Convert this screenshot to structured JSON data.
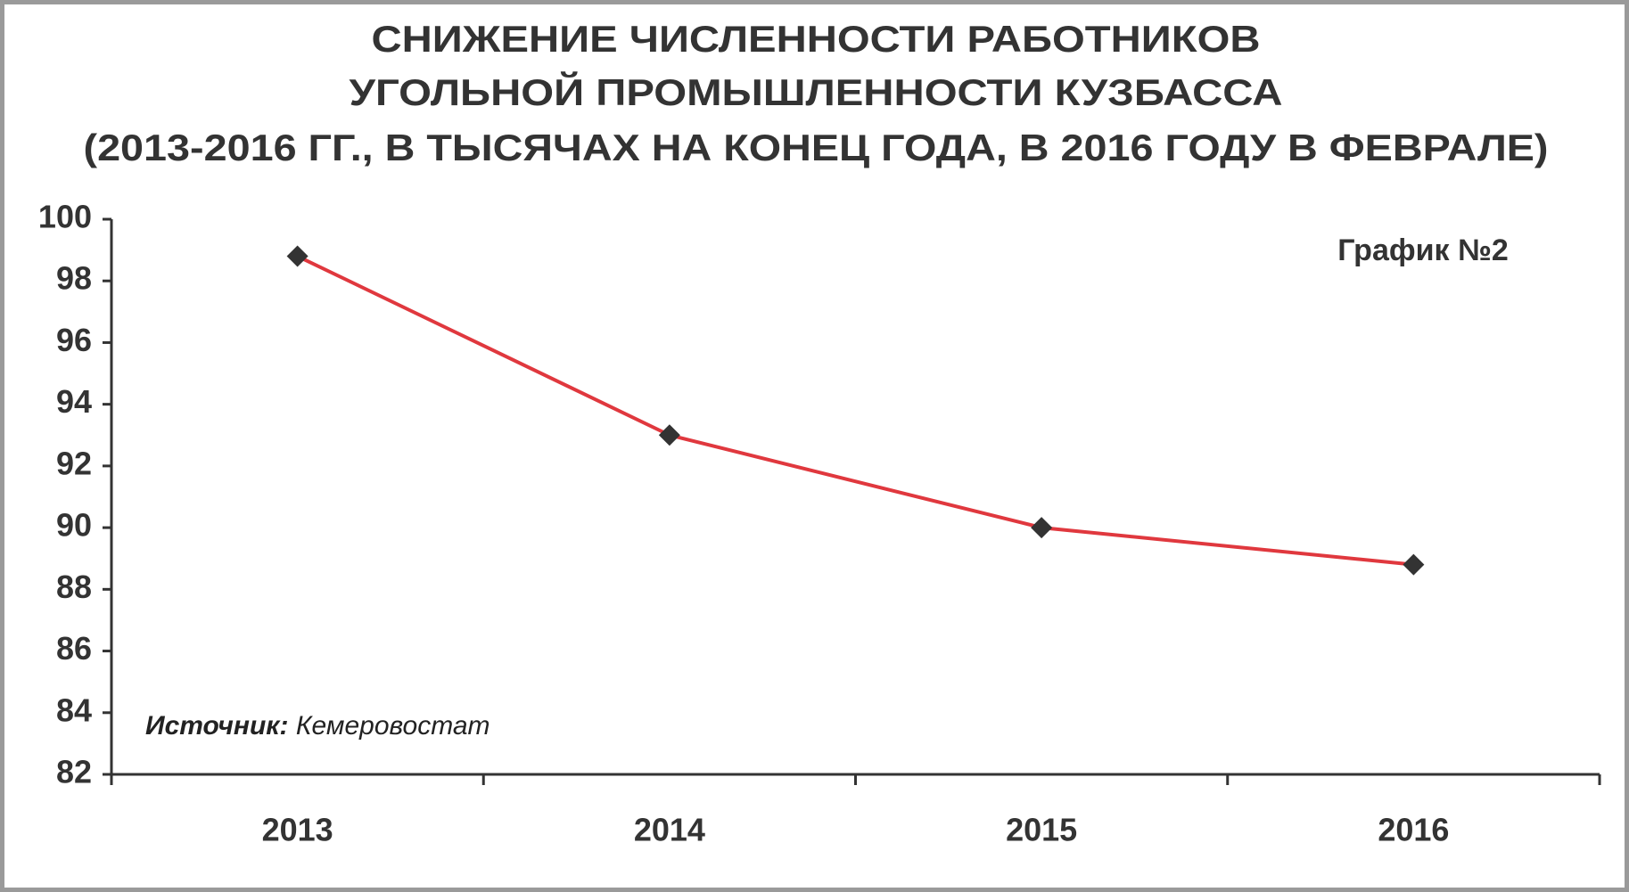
{
  "chart_data": {
    "type": "line",
    "title": [
      "СНИЖЕНИЕ ЧИСЛЕННОСТИ РАБОТНИКОВ",
      "УГОЛЬНОЙ ПРОМЫШЛЕННОСТИ КУЗБАССА",
      "(2013-2016 ГГ., В ТЫСЯЧАХ НА КОНЕЦ ГОДА, В 2016 ГОДУ В ФЕВРАЛЕ)"
    ],
    "annotation": "График №2",
    "source_label": "Источник:",
    "source": "Кемеровостат",
    "categories": [
      "2013",
      "2014",
      "2015",
      "2016"
    ],
    "values": [
      98.8,
      93.0,
      90.0,
      88.8
    ],
    "color": "#e0383e",
    "marker_color": "#333333",
    "ylim": [
      82,
      100
    ],
    "yticks": [
      82,
      84,
      86,
      88,
      90,
      92,
      94,
      96,
      98,
      100
    ],
    "grid": false
  }
}
